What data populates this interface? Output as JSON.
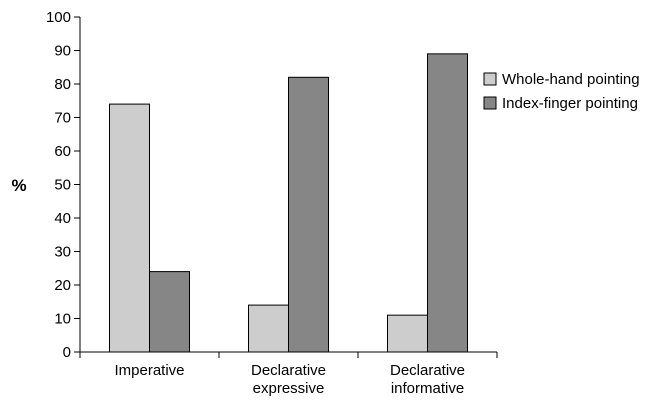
{
  "chart_data": {
    "type": "bar",
    "ylabel": "%",
    "xlabel": "",
    "ylim": [
      0,
      100
    ],
    "yticks": [
      0,
      10,
      20,
      30,
      40,
      50,
      60,
      70,
      80,
      90,
      100
    ],
    "grid": false,
    "legend_position": "right",
    "categories": [
      [
        "Imperative"
      ],
      [
        "Declarative",
        "expressive"
      ],
      [
        "Declarative",
        "informative"
      ]
    ],
    "series": [
      {
        "name": "Whole-hand pointing",
        "color": "#cdcdcd",
        "values": [
          74,
          14,
          11
        ]
      },
      {
        "name": "Index-finger pointing",
        "color": "#868686",
        "values": [
          24,
          82,
          89
        ]
      }
    ]
  }
}
